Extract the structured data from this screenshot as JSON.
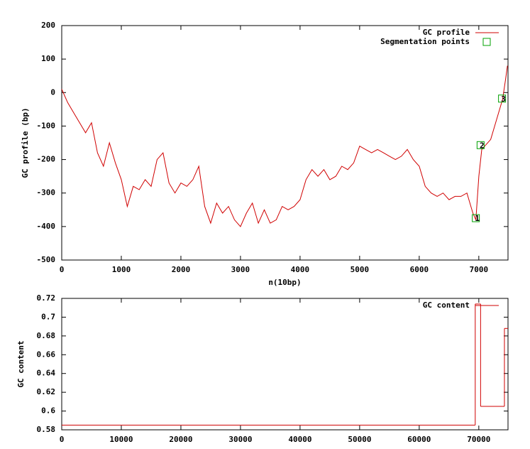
{
  "chart_data": [
    {
      "type": "line",
      "xlabel": "n(10bp)",
      "ylabel": "GC profile (bp)",
      "xlim": [
        0,
        7490
      ],
      "ylim": [
        -500,
        200
      ],
      "xticks": [
        0,
        1000,
        2000,
        3000,
        4000,
        5000,
        6000,
        7000
      ],
      "yticks": [
        -500,
        -400,
        -300,
        -200,
        -100,
        0,
        100,
        200
      ],
      "series": [
        {
          "name": "GC profile",
          "color": "#d00000",
          "style": "line",
          "x": [
            0,
            100,
            200,
            300,
            400,
            500,
            600,
            700,
            800,
            900,
            1000,
            1100,
            1200,
            1300,
            1400,
            1500,
            1600,
            1700,
            1800,
            1900,
            2000,
            2100,
            2200,
            2300,
            2400,
            2500,
            2600,
            2700,
            2800,
            2900,
            3000,
            3100,
            3200,
            3300,
            3400,
            3500,
            3600,
            3700,
            3800,
            3900,
            4000,
            4100,
            4200,
            4300,
            4400,
            4500,
            4600,
            4700,
            4800,
            4900,
            5000,
            5100,
            5200,
            5300,
            5400,
            5500,
            5600,
            5700,
            5800,
            5900,
            6000,
            6100,
            6200,
            6300,
            6400,
            6500,
            6600,
            6700,
            6800,
            6900,
            6950,
            7000,
            7050,
            7100,
            7200,
            7300,
            7400,
            7450,
            7480
          ],
          "values": [
            10,
            -30,
            -60,
            -90,
            -120,
            -90,
            -180,
            -220,
            -150,
            -210,
            -260,
            -340,
            -280,
            -290,
            -260,
            -280,
            -200,
            -180,
            -270,
            -300,
            -270,
            -280,
            -260,
            -220,
            -340,
            -390,
            -330,
            -360,
            -340,
            -380,
            -400,
            -360,
            -330,
            -390,
            -350,
            -390,
            -380,
            -340,
            -350,
            -340,
            -320,
            -260,
            -230,
            -250,
            -230,
            -260,
            -250,
            -220,
            -230,
            -210,
            -160,
            -170,
            -180,
            -170,
            -180,
            -190,
            -200,
            -190,
            -170,
            -200,
            -220,
            -280,
            -300,
            -310,
            -300,
            -320,
            -310,
            -310,
            -300,
            -360,
            -380,
            -250,
            -170,
            -160,
            -140,
            -80,
            -20,
            40,
            80
          ]
        },
        {
          "name": "Segmentation points",
          "color": "#00a000",
          "style": "points",
          "x": [
            6950,
            7030,
            7390
          ],
          "values": [
            -375,
            -157,
            -18
          ],
          "labels": [
            "1",
            "2",
            "3"
          ]
        }
      ]
    },
    {
      "type": "step",
      "ylabel": "GC content",
      "xlim": [
        0,
        74900
      ],
      "ylim": [
        0.58,
        0.72
      ],
      "xticks": [
        0,
        10000,
        20000,
        30000,
        40000,
        50000,
        60000,
        70000
      ],
      "yticks": [
        0.58,
        0.6,
        0.62,
        0.64,
        0.66,
        0.68,
        0.7,
        0.72
      ],
      "series": [
        {
          "name": "GC content",
          "color": "#d00000",
          "x": [
            0,
            69400,
            70300,
            74300
          ],
          "values": [
            0.585,
            0.714,
            0.605,
            0.688
          ]
        }
      ]
    }
  ]
}
